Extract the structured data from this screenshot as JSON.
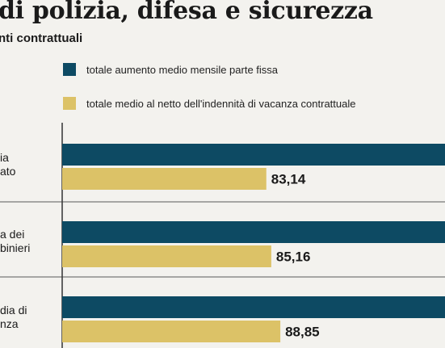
{
  "title": "di polizia, difesa e sicurezza",
  "subtitle": "nti contrattuali",
  "legend": [
    {
      "label": "totale aumento medio mensile parte fissa",
      "color": "#0d4a63"
    },
    {
      "label": "totale medio al netto dell'indennità di vacanza contrattuale",
      "color": "#dcc267"
    }
  ],
  "chart_data": {
    "type": "bar",
    "orientation": "horizontal",
    "categories": [
      "ia\nato",
      "a dei\nbinieri",
      "dia di\nnza"
    ],
    "series": [
      {
        "name": "totale aumento medio mensile parte fissa",
        "color": "#0d4a63",
        "values": [
          null,
          null,
          null
        ]
      },
      {
        "name": "totale medio al netto dell'indennità di vacanza contrattuale",
        "color": "#dcc267",
        "values": [
          83.14,
          85.16,
          88.85
        ]
      }
    ],
    "data_labels": [
      "83,14",
      "85,16",
      "88,85"
    ],
    "grid": true
  }
}
